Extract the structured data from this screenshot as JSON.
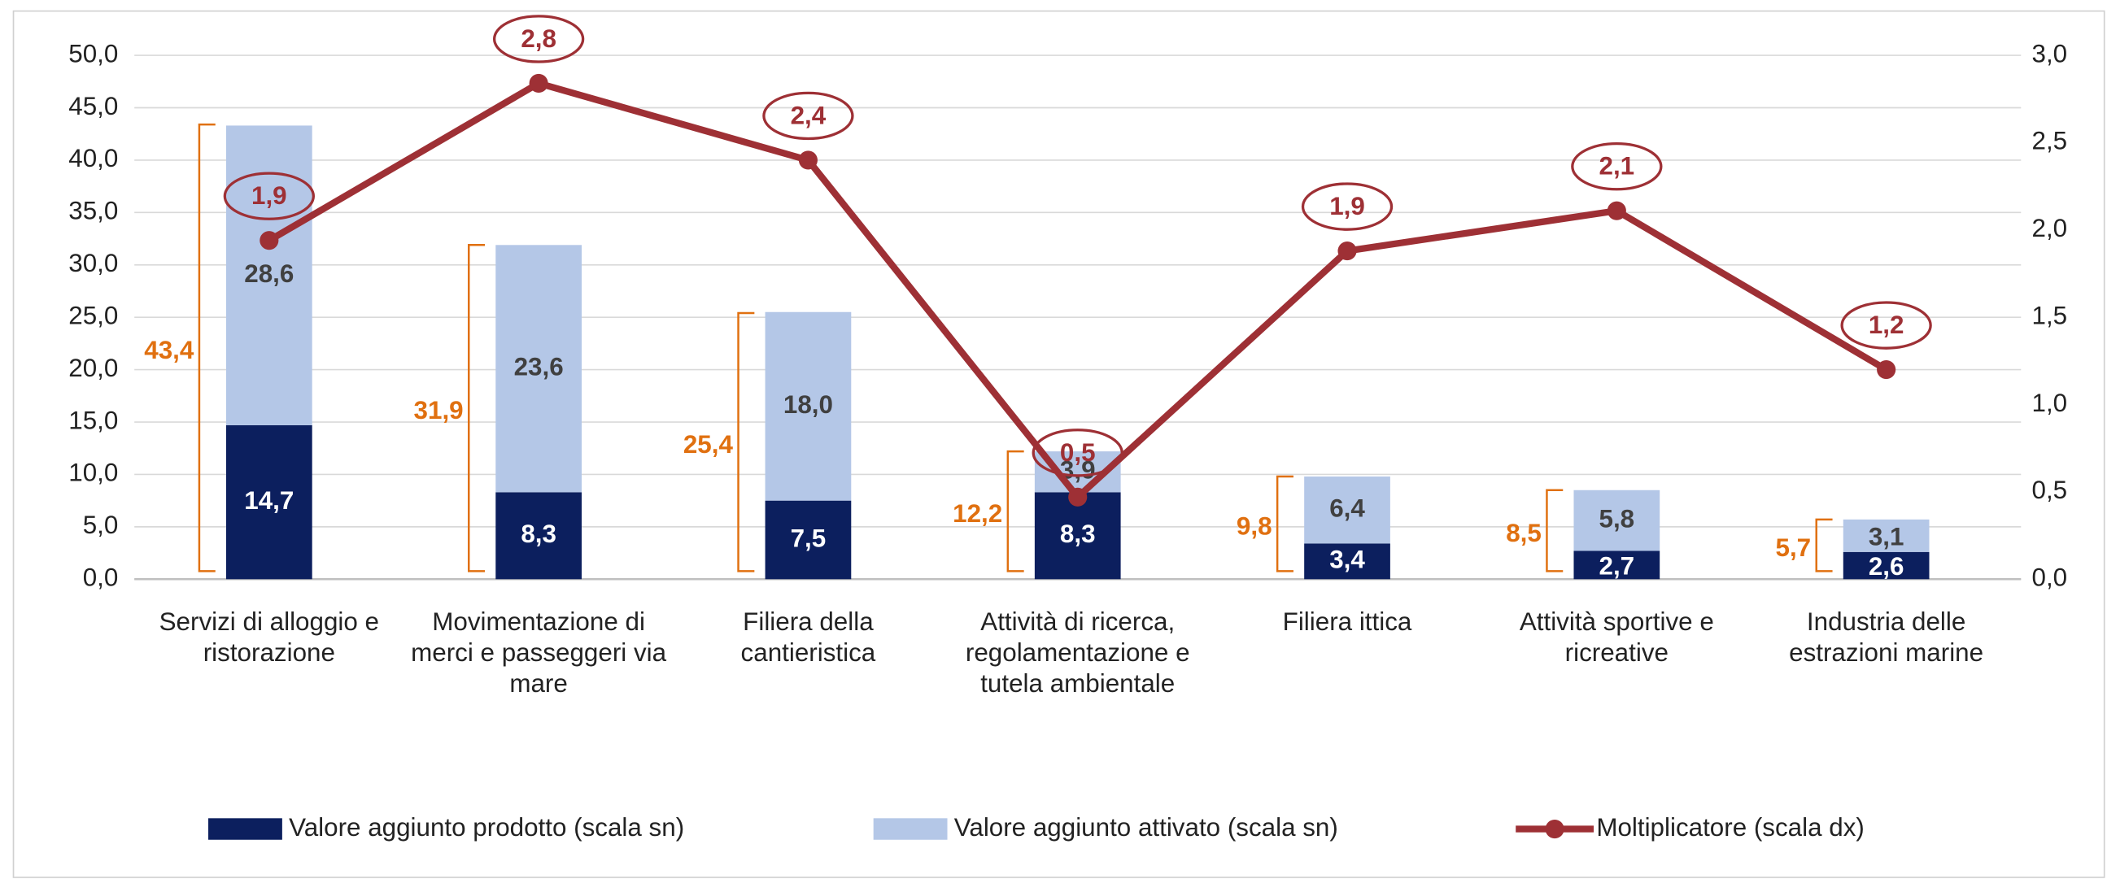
{
  "chart_data": {
    "type": "bar",
    "categories": [
      "Servizi di alloggio e ristorazione",
      "Movimentazione di merci e passeggeri via mare",
      "Filiera della cantieristica",
      "Attività di ricerca, regolamentazione e tutela ambientale",
      "Filiera ittica",
      "Attività sportive e ricreative",
      "Industria delle estrazioni marine"
    ],
    "series": [
      {
        "name": "Valore aggiunto prodotto (scala sn)",
        "color": "#0c1f5e",
        "values": [
          14.7,
          8.3,
          7.5,
          8.3,
          3.4,
          2.7,
          2.6
        ],
        "value_labels": [
          "14,7",
          "8,3",
          "7,5",
          "8,3",
          "3,4",
          "2,7",
          "2,6"
        ]
      },
      {
        "name": "Valore aggiunto attivato (scala sn)",
        "color": "#b4c7e7",
        "values": [
          28.6,
          23.6,
          18.0,
          3.9,
          6.4,
          5.8,
          3.1
        ],
        "value_labels": [
          "28,6",
          "23,6",
          "18,0",
          "3,9",
          "6,4",
          "5,8",
          "3,1"
        ]
      },
      {
        "name": "Moltiplicatore (scala dx)",
        "color": "#9e3035",
        "type": "line",
        "axis": "y2",
        "values": [
          1.94,
          2.84,
          2.4,
          0.47,
          1.88,
          2.11,
          1.2
        ],
        "value_labels": [
          "1,9",
          "2,8",
          "2,4",
          "0,5",
          "1,9",
          "2,1",
          "1,2"
        ]
      }
    ],
    "totals": [
      43.4,
      31.9,
      25.4,
      12.2,
      9.8,
      8.5,
      5.7
    ],
    "totals_labels": [
      "43,4",
      "31,9",
      "25,4",
      "12,2",
      "9,8",
      "8,5",
      "5,7"
    ],
    "totals_color": "#e07010",
    "ylim": [
      0,
      50
    ],
    "yticks": [
      {
        "value": 0,
        "label": "0,0"
      },
      {
        "value": 5,
        "label": "5,0"
      },
      {
        "value": 10,
        "label": "10,0"
      },
      {
        "value": 15,
        "label": "15,0"
      },
      {
        "value": 20,
        "label": "20,0"
      },
      {
        "value": 25,
        "label": "25,0"
      },
      {
        "value": 30,
        "label": "30,0"
      },
      {
        "value": 35,
        "label": "35,0"
      },
      {
        "value": 40,
        "label": "40,0"
      },
      {
        "value": 45,
        "label": "45,0"
      },
      {
        "value": 50,
        "label": "50,0"
      }
    ],
    "y2lim": [
      0,
      3
    ],
    "y2ticks": [
      {
        "value": 0,
        "label": "0,0"
      },
      {
        "value": 0.5,
        "label": "0,5"
      },
      {
        "value": 1,
        "label": "1,0"
      },
      {
        "value": 1.5,
        "label": "1,5"
      },
      {
        "value": 2,
        "label": "2,0"
      },
      {
        "value": 2.5,
        "label": "2,5"
      },
      {
        "value": 3,
        "label": "3,0"
      }
    ],
    "grid": true
  }
}
